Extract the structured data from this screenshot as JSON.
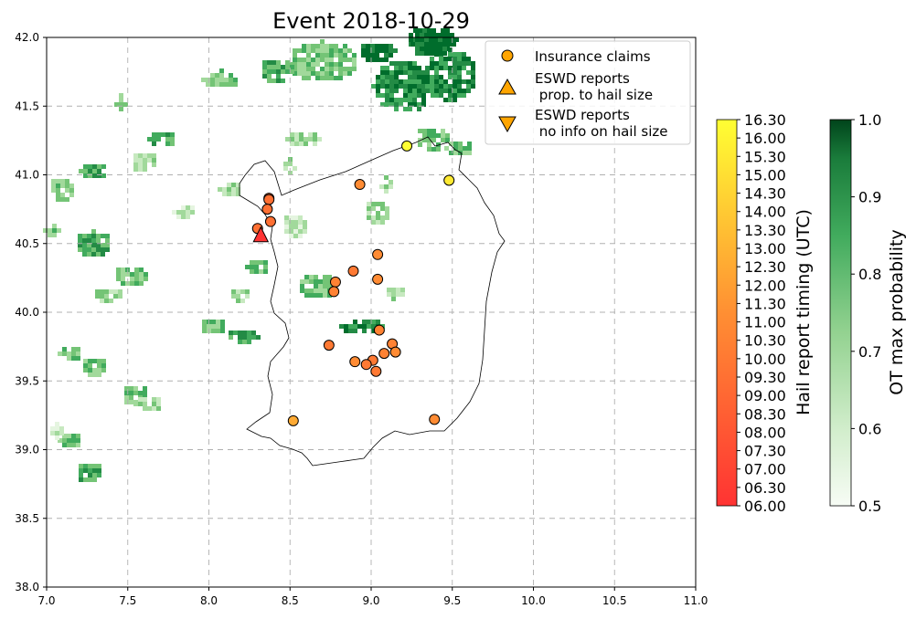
{
  "chart_data": {
    "type": "scatter",
    "title": "Event 2018-10-29",
    "xlim": [
      7.0,
      11.0
    ],
    "ylim": [
      38.0,
      42.0
    ],
    "x_ticks": [
      "7.0",
      "7.5",
      "8.0",
      "8.5",
      "9.0",
      "9.5",
      "10.0",
      "10.5",
      "11.0"
    ],
    "y_ticks": [
      "38.0",
      "38.5",
      "39.0",
      "39.5",
      "40.0",
      "40.5",
      "41.0",
      "41.5",
      "42.0"
    ],
    "grid": true,
    "legend_position": "top-right",
    "legend": [
      {
        "label": "Insurance claims",
        "marker": "circle"
      },
      {
        "label": "ESWD reports\n prop. to hail size",
        "marker": "triangle-up"
      },
      {
        "label": "ESWD reports\n no info on hail size",
        "marker": "triangle-down"
      }
    ],
    "series": [
      {
        "name": "Insurance claims",
        "marker": "circle",
        "points": [
          {
            "lon": 9.22,
            "lat": 41.21,
            "time": "16.30"
          },
          {
            "lon": 9.48,
            "lat": 40.96,
            "time": "15.30"
          },
          {
            "lon": 8.93,
            "lat": 40.93,
            "time": "11.00"
          },
          {
            "lon": 8.37,
            "lat": 40.83,
            "time": "09.30"
          },
          {
            "lon": 8.37,
            "lat": 40.82,
            "time": "09.30"
          },
          {
            "lon": 8.36,
            "lat": 40.75,
            "time": "09.30"
          },
          {
            "lon": 8.38,
            "lat": 40.66,
            "time": "09.30"
          },
          {
            "lon": 8.3,
            "lat": 40.61,
            "time": "09.30"
          },
          {
            "lon": 9.04,
            "lat": 40.42,
            "time": "11.00"
          },
          {
            "lon": 8.89,
            "lat": 40.3,
            "time": "10.00"
          },
          {
            "lon": 9.04,
            "lat": 40.24,
            "time": "11.00"
          },
          {
            "lon": 8.78,
            "lat": 40.22,
            "time": "10.30"
          },
          {
            "lon": 8.77,
            "lat": 40.15,
            "time": "10.30"
          },
          {
            "lon": 9.05,
            "lat": 39.87,
            "time": "10.30"
          },
          {
            "lon": 8.74,
            "lat": 39.76,
            "time": "10.00"
          },
          {
            "lon": 9.13,
            "lat": 39.77,
            "time": "10.30"
          },
          {
            "lon": 9.15,
            "lat": 39.71,
            "time": "11.00"
          },
          {
            "lon": 9.08,
            "lat": 39.7,
            "time": "10.30"
          },
          {
            "lon": 8.9,
            "lat": 39.64,
            "time": "11.00"
          },
          {
            "lon": 9.01,
            "lat": 39.65,
            "time": "10.00"
          },
          {
            "lon": 8.97,
            "lat": 39.62,
            "time": "10.00"
          },
          {
            "lon": 9.03,
            "lat": 39.57,
            "time": "10.00"
          },
          {
            "lon": 8.52,
            "lat": 39.21,
            "time": "12.30"
          },
          {
            "lon": 9.39,
            "lat": 39.22,
            "time": "11.00"
          }
        ]
      },
      {
        "name": "ESWD reports\n prop. to hail size",
        "marker": "triangle-up",
        "points": [
          {
            "lon": 8.32,
            "lat": 40.56,
            "time": "06.00"
          }
        ]
      }
    ],
    "colorbars": [
      {
        "label": "Hail report timing (UTC)",
        "ticks": [
          "06.00",
          "06.30",
          "07.00",
          "07.30",
          "08.00",
          "08.30",
          "09.00",
          "09.30",
          "10.00",
          "10.30",
          "11.00",
          "11.30",
          "12.00",
          "12.30",
          "13.00",
          "13.30",
          "14.00",
          "14.30",
          "15.00",
          "15.30",
          "16.00",
          "16.30"
        ],
        "range": [
          6.0,
          16.5
        ],
        "color_low": "#ff3333",
        "color_mid": "#ff8f33",
        "color_high": "#ffff33"
      },
      {
        "label": "OT max probability",
        "ticks": [
          "0.5",
          "0.6",
          "0.7",
          "0.8",
          "0.9",
          "1.0"
        ],
        "range": [
          0.5,
          1.0
        ],
        "cmap": "Greens"
      }
    ],
    "colors": {
      "grid": "#b0b0b0",
      "coast": "#000000",
      "marker_edge": "#000000"
    }
  }
}
